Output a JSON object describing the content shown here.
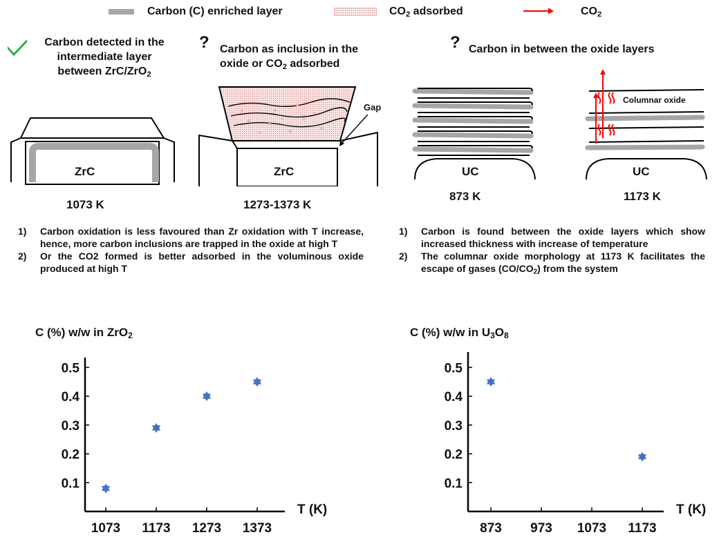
{
  "legend": {
    "carbon_layer": "Carbon (C) enriched layer",
    "co2_adsorbed_prefix": "CO",
    "co2_adsorbed_sub": "2",
    "co2_adsorbed_suffix": " adsorbed",
    "co2_prefix": "CO",
    "co2_sub": "2",
    "carbon_color": "#a6a6a6",
    "co2_color": "#ff0000"
  },
  "panels": {
    "zrc_1073": {
      "mark": "check-icon",
      "heading_line1": "Carbon detected in the",
      "heading_line2": "intermediate layer",
      "heading_line3_prefix": "between ZrC/ZrO",
      "heading_line3_sub": "2",
      "substrate": "ZrC",
      "temperature": "1073 K"
    },
    "zrc_high": {
      "mark": "?",
      "heading_line1": "Carbon as inclusion in the",
      "heading_line2_prefix": "oxide or CO",
      "heading_line2_sub": "2",
      "heading_line2_suffix": " adsorbed",
      "gap_label": "Gap",
      "substrate": "ZrC",
      "temperature": "1273-1373 K"
    },
    "uc": {
      "mark": "?",
      "heading": "Carbon in between the oxide layers",
      "left_substrate": "UC",
      "left_temperature": "873 K",
      "right_substrate": "UC",
      "right_temperature": "1173 K",
      "columnar_label": "Columnar oxide"
    }
  },
  "notes_left": [
    {
      "num": "1)",
      "text": "Carbon oxidation is less favoured than Zr oxidation with T increase, hence, more carbon inclusions are trapped in the oxide at high T"
    },
    {
      "num": "2)",
      "text": "Or the CO2 formed is better adsorbed in the voluminous oxide produced at high T"
    }
  ],
  "notes_right": [
    {
      "num": "1)",
      "text": "Carbon is found between the oxide layers which show increased thickness with increase of temperature"
    },
    {
      "num": "2)",
      "text_prefix": "The columnar oxide morphology at 1173 K facilitates the escape of gases (CO/CO",
      "text_sub": "2",
      "text_suffix": ") from the system"
    }
  ],
  "chart_data": [
    {
      "type": "scatter",
      "ylabel_prefix": "C (%) w/w in ZrO",
      "ylabel_sub": "2",
      "xlabel": "T (K)",
      "xticks": [
        1073,
        1173,
        1273,
        1373
      ],
      "yticks": [
        0.1,
        0.2,
        0.3,
        0.4,
        0.5
      ],
      "ylim": [
        0,
        0.52
      ],
      "x": [
        1073,
        1173,
        1273,
        1373
      ],
      "y": [
        0.08,
        0.29,
        0.4,
        0.45
      ],
      "marker_color": "#4472c4"
    },
    {
      "type": "scatter",
      "ylabel_prefix": "C (%) w/w in U",
      "ylabel_sub1": "3",
      "ylabel_mid": "O",
      "ylabel_sub2": "8",
      "xlabel": "T (K)",
      "xticks": [
        873,
        973,
        1073,
        1173
      ],
      "yticks": [
        0.1,
        0.2,
        0.3,
        0.4,
        0.5
      ],
      "ylim": [
        0,
        0.52
      ],
      "x": [
        873,
        1173
      ],
      "y": [
        0.45,
        0.19
      ],
      "marker_color": "#4472c4"
    }
  ]
}
